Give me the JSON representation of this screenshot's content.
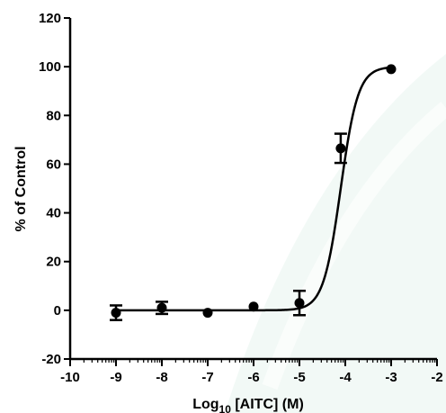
{
  "chart_data": {
    "type": "scatter",
    "title": "",
    "xlabel": {
      "prefix": "Log",
      "subscript": "10",
      "suffix": " [AITC] (M)"
    },
    "ylabel": "% of Control",
    "xlim": [
      -10,
      -2
    ],
    "ylim": [
      -20,
      120
    ],
    "xticks": [
      -10,
      -9,
      -8,
      -7,
      -6,
      -5,
      -4,
      -3,
      -2
    ],
    "yticks": [
      -20,
      0,
      20,
      40,
      60,
      80,
      100,
      120
    ],
    "grid": false,
    "legend": "none",
    "series": [
      {
        "points": [
          {
            "x": -9,
            "y": -1,
            "err": 3
          },
          {
            "x": -8,
            "y": 1,
            "err": 2.5
          },
          {
            "x": -7,
            "y": -1,
            "err": 0
          },
          {
            "x": -6,
            "y": 1.5,
            "err": 0
          },
          {
            "x": -5,
            "y": 3,
            "err": 5
          },
          {
            "x": -4.1,
            "y": 66.5,
            "err": 6
          },
          {
            "x": -3,
            "y": 99,
            "err": 0
          }
        ],
        "fit": {
          "model": "sigmoid",
          "bottom": 0,
          "top": 100,
          "log_ec50": -4.1,
          "hill": 2.3
        }
      }
    ],
    "colors": {
      "marks": "#000000",
      "watermark": "#e8f4ef"
    },
    "watermark_icon": "leaf-watermark-icon"
  }
}
